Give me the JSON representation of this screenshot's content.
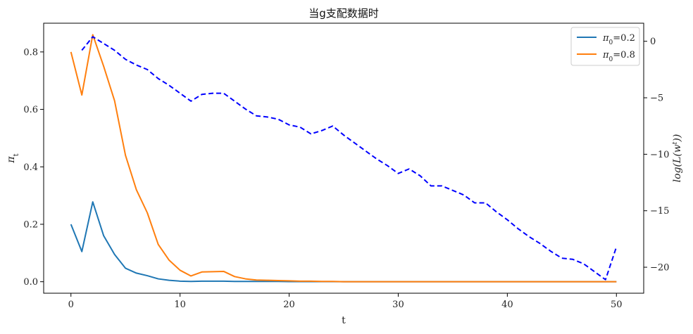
{
  "chart_data": {
    "type": "line",
    "title": "当g支配数据时",
    "xlabel": "t",
    "ylabel": "π_t",
    "ylabel_main": "π",
    "ylabel_sub": "t",
    "y2label": "log(L(w^t))",
    "y2label_main": "log(L(w",
    "y2label_sup": "t",
    "y2label_end": "))",
    "xlim": [
      -2.5,
      52.5
    ],
    "ylim": [
      -0.04,
      0.9
    ],
    "y2lim": [
      -22.3,
      1.6
    ],
    "xticks": [
      0,
      10,
      20,
      30,
      40,
      50
    ],
    "yticks": [
      0.0,
      0.2,
      0.4,
      0.6,
      0.8
    ],
    "ytick_labels": [
      "0.0",
      "0.2",
      "0.4",
      "0.6",
      "0.8"
    ],
    "y2ticks": [
      0,
      -5,
      -10,
      -15,
      -20
    ],
    "y2tick_labels": [
      "0",
      "−5",
      "−10",
      "−15",
      "−20"
    ],
    "legend_position": "top-right",
    "series": [
      {
        "name": "π0=0.2",
        "legend_main": "π",
        "legend_sub": "0",
        "legend_rest": "=0.2",
        "color": "#1f77b4",
        "axis": "left",
        "dashed": false,
        "x": [
          0,
          1,
          2,
          3,
          4,
          5,
          6,
          7,
          8,
          9,
          10,
          11,
          12,
          13,
          14,
          15,
          16,
          17,
          18,
          19,
          20,
          21,
          22,
          23,
          24,
          25,
          26,
          27,
          28,
          29,
          30,
          31,
          32,
          33,
          34,
          35,
          36,
          37,
          38,
          39,
          40,
          41,
          42,
          43,
          44,
          45,
          46,
          47,
          48,
          49,
          50
        ],
        "values": [
          0.2,
          0.105,
          0.278,
          0.16,
          0.095,
          0.047,
          0.03,
          0.021,
          0.01,
          0.005,
          0.002,
          0.001,
          0.002,
          0.002,
          0.002,
          0.001,
          0.001,
          0.001,
          0.001,
          0.001,
          0.0005,
          0.0005,
          0.0005,
          0.0005,
          0.0005,
          0,
          0,
          0,
          0,
          0,
          0,
          0,
          0,
          0,
          0,
          0,
          0,
          0,
          0,
          0,
          0,
          0,
          0,
          0,
          0,
          0,
          0,
          0,
          0,
          0,
          0
        ]
      },
      {
        "name": "π0=0.8",
        "legend_main": "π",
        "legend_sub": "0",
        "legend_rest": "=0.8",
        "color": "#ff7f0e",
        "axis": "left",
        "dashed": false,
        "x": [
          0,
          1,
          2,
          3,
          4,
          5,
          6,
          7,
          8,
          9,
          10,
          11,
          12,
          13,
          14,
          15,
          16,
          17,
          18,
          19,
          20,
          21,
          22,
          23,
          24,
          25,
          26,
          27,
          28,
          29,
          30,
          31,
          32,
          33,
          34,
          35,
          36,
          37,
          38,
          39,
          40,
          41,
          42,
          43,
          44,
          45,
          46,
          47,
          48,
          49,
          50
        ],
        "values": [
          0.8,
          0.65,
          0.86,
          0.75,
          0.63,
          0.44,
          0.32,
          0.24,
          0.13,
          0.075,
          0.04,
          0.02,
          0.034,
          0.035,
          0.036,
          0.018,
          0.01,
          0.006,
          0.005,
          0.004,
          0.003,
          0.002,
          0.002,
          0.001,
          0.001,
          0,
          0,
          0,
          0,
          0,
          0,
          0,
          0,
          0,
          0,
          0,
          0,
          0,
          0,
          0,
          0,
          0,
          0,
          0,
          0,
          0,
          0,
          0,
          0,
          0,
          0
        ]
      },
      {
        "name": "log(L(w^t))",
        "color": "#0000ff",
        "axis": "right",
        "dashed": true,
        "x": [
          1,
          2,
          3,
          4,
          5,
          6,
          7,
          8,
          9,
          10,
          11,
          12,
          13,
          14,
          15,
          16,
          17,
          18,
          19,
          20,
          21,
          22,
          23,
          24,
          25,
          26,
          27,
          28,
          29,
          30,
          31,
          32,
          33,
          34,
          35,
          36,
          37,
          38,
          39,
          40,
          41,
          42,
          43,
          44,
          45,
          46,
          47,
          48,
          49,
          50
        ],
        "values": [
          -0.8,
          0.4,
          -0.2,
          -0.8,
          -1.6,
          -2.1,
          -2.5,
          -3.3,
          -3.9,
          -4.6,
          -5.3,
          -4.7,
          -4.6,
          -4.6,
          -5.3,
          -6,
          -6.6,
          -6.7,
          -6.9,
          -7.4,
          -7.6,
          -8.2,
          -7.9,
          -7.5,
          -8.3,
          -9,
          -9.7,
          -10.4,
          -11,
          -11.7,
          -11.3,
          -11.9,
          -12.8,
          -12.8,
          -13.2,
          -13.6,
          -14.3,
          -14.3,
          -15.1,
          -15.8,
          -16.6,
          -17.3,
          -17.9,
          -18.6,
          -19.2,
          -19.3,
          -19.7,
          -20.4,
          -21.1,
          -18.2
        ]
      }
    ]
  }
}
